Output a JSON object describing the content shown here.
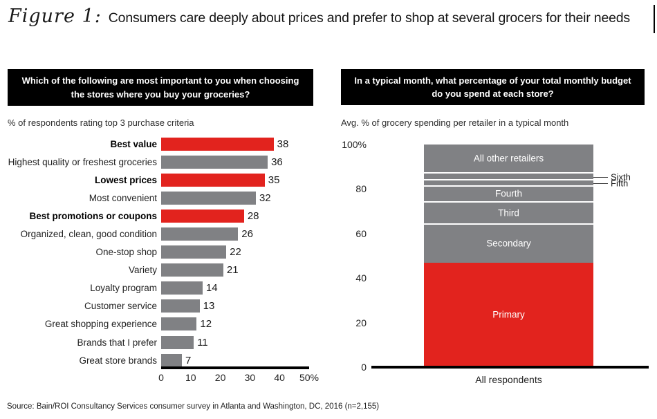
{
  "title": {
    "figure_label": "Figure 1:",
    "text": "Consumers care deeply about prices and prefer to shop at several grocers for their needs"
  },
  "colors": {
    "red": "#e2231e",
    "gray": "#808184",
    "header_bg": "#000000",
    "header_text": "#ffffff"
  },
  "left_panel": {
    "question": "Which of the following are most important to you when choosing the stores where you buy your groceries?",
    "subtitle": "% of respondents rating top 3 purchase criteria"
  },
  "right_panel": {
    "question": "In a typical month, what percentage of your total monthly budget do you spend at each store?",
    "subtitle": "Avg. % of grocery spending per retailer in a typical month"
  },
  "chart_data": [
    {
      "type": "bar",
      "orientation": "horizontal",
      "title": "Which of the following are most important to you when choosing the stores where you buy your groceries?",
      "subtitle": "% of respondents rating top 3 purchase criteria",
      "xlim": [
        0,
        50
      ],
      "x_ticks": [
        {
          "label": "0",
          "value": 0
        },
        {
          "label": "10",
          "value": 10
        },
        {
          "label": "20",
          "value": 20
        },
        {
          "label": "30",
          "value": 30
        },
        {
          "label": "40",
          "value": 40
        },
        {
          "label": "50%",
          "value": 50
        }
      ],
      "categories": [
        "Best value",
        "Highest quality or freshest groceries",
        "Lowest prices",
        "Most convenient",
        "Best promotions or coupons",
        "Organized, clean, good condition",
        "One-stop shop",
        "Variety",
        "Loyalty program",
        "Customer service",
        "Great shopping experience",
        "Brands that I prefer",
        "Great store brands"
      ],
      "values": [
        38,
        36,
        35,
        32,
        28,
        26,
        22,
        21,
        14,
        13,
        12,
        11,
        7
      ],
      "highlighted": [
        true,
        false,
        true,
        false,
        true,
        false,
        false,
        false,
        false,
        false,
        false,
        false,
        false
      ],
      "legend": "red bars = price-related criteria (highlighted), gray bars = other criteria"
    },
    {
      "type": "stacked-bar",
      "title": "In a typical month, what percentage of your total monthly budget do you spend at each store?",
      "subtitle": "Avg. % of grocery spending per retailer in a typical month",
      "categories": [
        "All respondents"
      ],
      "xlabel": "All respondents",
      "ylim": [
        0,
        100
      ],
      "y_ticks": [
        {
          "label": "100%",
          "value": 100
        },
        {
          "label": "80",
          "value": 80
        },
        {
          "label": "60",
          "value": 60
        },
        {
          "label": "40",
          "value": 40
        },
        {
          "label": "20",
          "value": 20
        },
        {
          "label": "0",
          "value": 0
        }
      ],
      "series": [
        {
          "name": "Primary",
          "value": 47,
          "color": "red",
          "label_position": "inside"
        },
        {
          "name": "Secondary",
          "value": 17,
          "color": "gray",
          "label_position": "inside"
        },
        {
          "name": "Third",
          "value": 10,
          "color": "gray",
          "label_position": "inside"
        },
        {
          "name": "Fourth",
          "value": 7,
          "color": "gray",
          "label_position": "inside"
        },
        {
          "name": "Fifth",
          "value": 3,
          "color": "gray",
          "label_position": "outside"
        },
        {
          "name": "Sixth",
          "value": 3,
          "color": "gray",
          "label_position": "outside"
        },
        {
          "name": "All other retailers",
          "value": 13,
          "color": "gray",
          "label_position": "inside"
        }
      ]
    }
  ],
  "footer": {
    "source": "Source: Bain/ROI Consultancy Services consumer survey in Atlanta and Washington, DC, 2016 (n=2,155)"
  }
}
